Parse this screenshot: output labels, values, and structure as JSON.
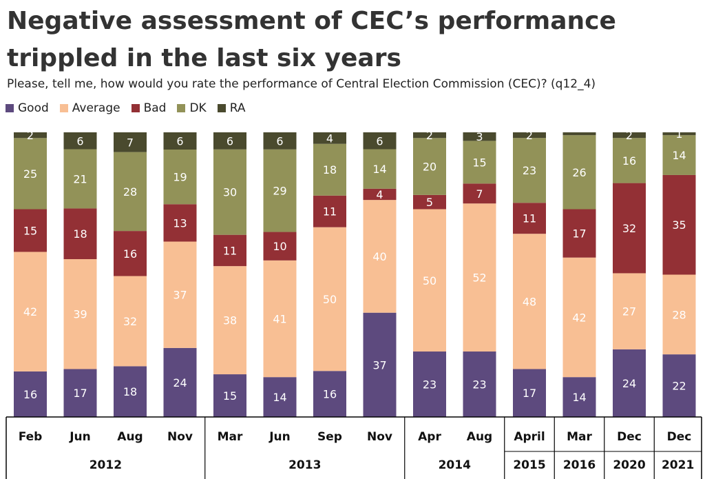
{
  "title": "Negative assessment of CEC’s performance trippled in the last six years",
  "subtitle": "Please, tell me, how would you rate the performance of Central Election Commission (CEC)? (q12_4)",
  "colors": {
    "Good": "#5d4a7e",
    "Average": "#f8bf94",
    "Bad": "#933035",
    "DK": "#929258",
    "RA": "#4a4a2e"
  },
  "chart_data": {
    "type": "bar",
    "stacked": true,
    "categories": [
      "Feb",
      "Jun",
      "Aug",
      "Nov",
      "Mar",
      "Jun",
      "Sep",
      "Nov",
      "Apr",
      "Aug",
      "April",
      "Mar",
      "Dec",
      "Dec"
    ],
    "years": [
      {
        "label": "2012",
        "count": 4
      },
      {
        "label": "2013",
        "count": 4
      },
      {
        "label": "2014",
        "count": 2
      },
      {
        "label": "2015",
        "count": 1
      },
      {
        "label": "2016",
        "count": 1
      },
      {
        "label": "2020",
        "count": 1
      },
      {
        "label": "2021",
        "count": 1
      }
    ],
    "series": [
      {
        "name": "Good",
        "values": [
          16,
          17,
          18,
          24,
          15,
          14,
          16,
          37,
          23,
          23,
          17,
          14,
          24,
          22
        ]
      },
      {
        "name": "Average",
        "values": [
          42,
          39,
          32,
          37,
          38,
          41,
          50,
          40,
          50,
          52,
          48,
          42,
          27,
          28
        ]
      },
      {
        "name": "Bad",
        "values": [
          15,
          18,
          16,
          13,
          11,
          10,
          11,
          4,
          5,
          7,
          11,
          17,
          32,
          35
        ]
      },
      {
        "name": "DK",
        "values": [
          25,
          21,
          28,
          19,
          30,
          29,
          18,
          14,
          20,
          15,
          23,
          26,
          16,
          14
        ]
      },
      {
        "name": "RA",
        "values": [
          2,
          6,
          7,
          6,
          6,
          6,
          4,
          6,
          2,
          3,
          2,
          1,
          2,
          1
        ]
      }
    ],
    "ylim": [
      0,
      100
    ],
    "unit": "%"
  }
}
